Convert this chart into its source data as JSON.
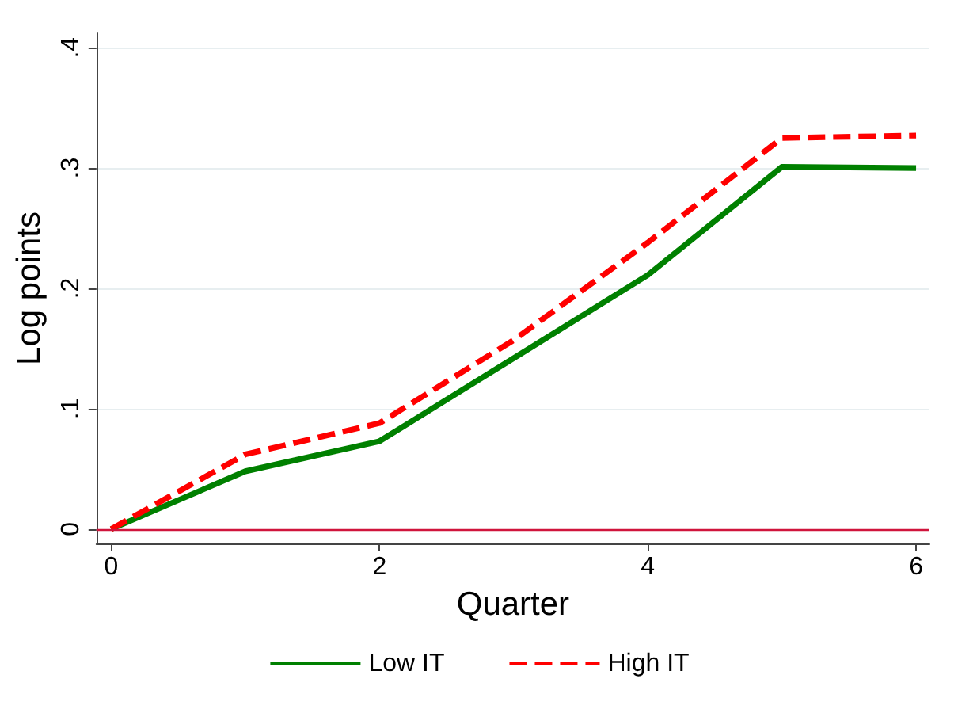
{
  "chart_data": {
    "type": "line",
    "xlabel": "Quarter",
    "ylabel": "Log points",
    "x": [
      0,
      1,
      2,
      3,
      4,
      5,
      6
    ],
    "series": [
      {
        "name": "Low IT",
        "color": "#008000",
        "line_style": "solid",
        "values": [
          0,
          0.048,
          0.073,
          0.142,
          0.211,
          0.301,
          0.3
        ]
      },
      {
        "name": "High IT",
        "color": "#ff0000",
        "line_style": "dashed",
        "values": [
          0,
          0.062,
          0.088,
          0.157,
          0.238,
          0.325,
          0.327
        ]
      }
    ],
    "xlim": [
      -0.11,
      6.1
    ],
    "xticks": [
      0,
      2,
      4,
      6
    ],
    "ylim": [
      -0.012,
      0.412
    ],
    "yticks": [
      0,
      {
        "value": 0.1,
        "label": ".1"
      },
      {
        "value": 0.2,
        "label": ".2"
      },
      {
        "value": 0.3,
        "label": ".3"
      },
      {
        "value": 0.4,
        "label": ".4"
      }
    ],
    "ref_lines": [
      {
        "axis": "y",
        "value": 0,
        "color": "#d0143c"
      }
    ],
    "grid": "y",
    "legend": "bottom",
    "marker": "none"
  }
}
